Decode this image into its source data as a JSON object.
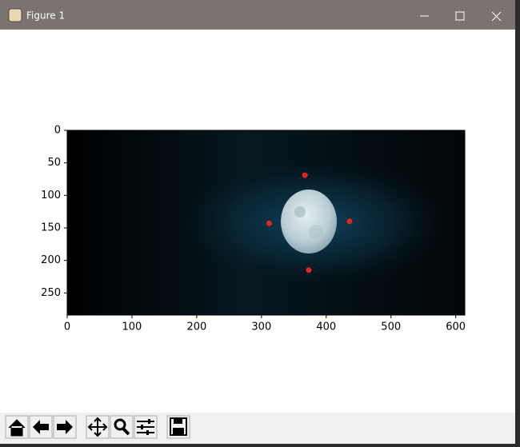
{
  "window": {
    "title": "Figure 1"
  },
  "chart_data": {
    "type": "scatter",
    "x": [
      367,
      312,
      436,
      373
    ],
    "y": [
      69,
      143,
      140,
      215
    ],
    "color": "#e3242b",
    "xlim": [
      0,
      614
    ],
    "ylim": [
      284,
      0
    ],
    "xticks": [
      0,
      100,
      200,
      300,
      400,
      500,
      600
    ],
    "yticks": [
      0,
      50,
      100,
      150,
      200,
      250
    ]
  }
}
